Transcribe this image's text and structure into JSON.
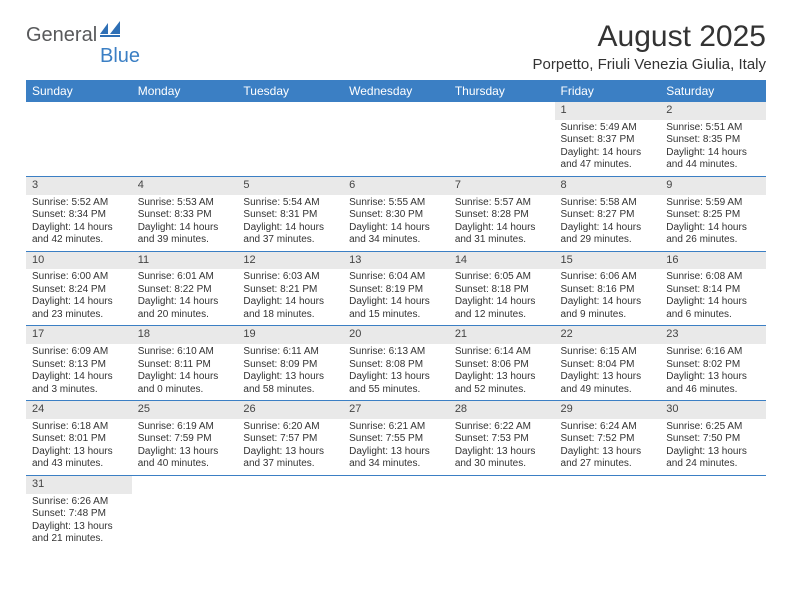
{
  "brand": {
    "part1": "General",
    "part2": "Blue"
  },
  "title": "August 2025",
  "location": "Porpetto, Friuli Venezia Giulia, Italy",
  "colors": {
    "header_bg": "#3b7fc4",
    "header_fg": "#ffffff",
    "daynum_bg": "#e9e9e9",
    "row_border": "#3b7fc4",
    "logo_gray": "#58595b",
    "logo_blue": "#3b7fc4"
  },
  "weekdays": [
    "Sunday",
    "Monday",
    "Tuesday",
    "Wednesday",
    "Thursday",
    "Friday",
    "Saturday"
  ],
  "weeks": [
    [
      null,
      null,
      null,
      null,
      null,
      {
        "n": "1",
        "sr": "Sunrise: 5:49 AM",
        "ss": "Sunset: 8:37 PM",
        "d1": "Daylight: 14 hours",
        "d2": "and 47 minutes."
      },
      {
        "n": "2",
        "sr": "Sunrise: 5:51 AM",
        "ss": "Sunset: 8:35 PM",
        "d1": "Daylight: 14 hours",
        "d2": "and 44 minutes."
      }
    ],
    [
      {
        "n": "3",
        "sr": "Sunrise: 5:52 AM",
        "ss": "Sunset: 8:34 PM",
        "d1": "Daylight: 14 hours",
        "d2": "and 42 minutes."
      },
      {
        "n": "4",
        "sr": "Sunrise: 5:53 AM",
        "ss": "Sunset: 8:33 PM",
        "d1": "Daylight: 14 hours",
        "d2": "and 39 minutes."
      },
      {
        "n": "5",
        "sr": "Sunrise: 5:54 AM",
        "ss": "Sunset: 8:31 PM",
        "d1": "Daylight: 14 hours",
        "d2": "and 37 minutes."
      },
      {
        "n": "6",
        "sr": "Sunrise: 5:55 AM",
        "ss": "Sunset: 8:30 PM",
        "d1": "Daylight: 14 hours",
        "d2": "and 34 minutes."
      },
      {
        "n": "7",
        "sr": "Sunrise: 5:57 AM",
        "ss": "Sunset: 8:28 PM",
        "d1": "Daylight: 14 hours",
        "d2": "and 31 minutes."
      },
      {
        "n": "8",
        "sr": "Sunrise: 5:58 AM",
        "ss": "Sunset: 8:27 PM",
        "d1": "Daylight: 14 hours",
        "d2": "and 29 minutes."
      },
      {
        "n": "9",
        "sr": "Sunrise: 5:59 AM",
        "ss": "Sunset: 8:25 PM",
        "d1": "Daylight: 14 hours",
        "d2": "and 26 minutes."
      }
    ],
    [
      {
        "n": "10",
        "sr": "Sunrise: 6:00 AM",
        "ss": "Sunset: 8:24 PM",
        "d1": "Daylight: 14 hours",
        "d2": "and 23 minutes."
      },
      {
        "n": "11",
        "sr": "Sunrise: 6:01 AM",
        "ss": "Sunset: 8:22 PM",
        "d1": "Daylight: 14 hours",
        "d2": "and 20 minutes."
      },
      {
        "n": "12",
        "sr": "Sunrise: 6:03 AM",
        "ss": "Sunset: 8:21 PM",
        "d1": "Daylight: 14 hours",
        "d2": "and 18 minutes."
      },
      {
        "n": "13",
        "sr": "Sunrise: 6:04 AM",
        "ss": "Sunset: 8:19 PM",
        "d1": "Daylight: 14 hours",
        "d2": "and 15 minutes."
      },
      {
        "n": "14",
        "sr": "Sunrise: 6:05 AM",
        "ss": "Sunset: 8:18 PM",
        "d1": "Daylight: 14 hours",
        "d2": "and 12 minutes."
      },
      {
        "n": "15",
        "sr": "Sunrise: 6:06 AM",
        "ss": "Sunset: 8:16 PM",
        "d1": "Daylight: 14 hours",
        "d2": "and 9 minutes."
      },
      {
        "n": "16",
        "sr": "Sunrise: 6:08 AM",
        "ss": "Sunset: 8:14 PM",
        "d1": "Daylight: 14 hours",
        "d2": "and 6 minutes."
      }
    ],
    [
      {
        "n": "17",
        "sr": "Sunrise: 6:09 AM",
        "ss": "Sunset: 8:13 PM",
        "d1": "Daylight: 14 hours",
        "d2": "and 3 minutes."
      },
      {
        "n": "18",
        "sr": "Sunrise: 6:10 AM",
        "ss": "Sunset: 8:11 PM",
        "d1": "Daylight: 14 hours",
        "d2": "and 0 minutes."
      },
      {
        "n": "19",
        "sr": "Sunrise: 6:11 AM",
        "ss": "Sunset: 8:09 PM",
        "d1": "Daylight: 13 hours",
        "d2": "and 58 minutes."
      },
      {
        "n": "20",
        "sr": "Sunrise: 6:13 AM",
        "ss": "Sunset: 8:08 PM",
        "d1": "Daylight: 13 hours",
        "d2": "and 55 minutes."
      },
      {
        "n": "21",
        "sr": "Sunrise: 6:14 AM",
        "ss": "Sunset: 8:06 PM",
        "d1": "Daylight: 13 hours",
        "d2": "and 52 minutes."
      },
      {
        "n": "22",
        "sr": "Sunrise: 6:15 AM",
        "ss": "Sunset: 8:04 PM",
        "d1": "Daylight: 13 hours",
        "d2": "and 49 minutes."
      },
      {
        "n": "23",
        "sr": "Sunrise: 6:16 AM",
        "ss": "Sunset: 8:02 PM",
        "d1": "Daylight: 13 hours",
        "d2": "and 46 minutes."
      }
    ],
    [
      {
        "n": "24",
        "sr": "Sunrise: 6:18 AM",
        "ss": "Sunset: 8:01 PM",
        "d1": "Daylight: 13 hours",
        "d2": "and 43 minutes."
      },
      {
        "n": "25",
        "sr": "Sunrise: 6:19 AM",
        "ss": "Sunset: 7:59 PM",
        "d1": "Daylight: 13 hours",
        "d2": "and 40 minutes."
      },
      {
        "n": "26",
        "sr": "Sunrise: 6:20 AM",
        "ss": "Sunset: 7:57 PM",
        "d1": "Daylight: 13 hours",
        "d2": "and 37 minutes."
      },
      {
        "n": "27",
        "sr": "Sunrise: 6:21 AM",
        "ss": "Sunset: 7:55 PM",
        "d1": "Daylight: 13 hours",
        "d2": "and 34 minutes."
      },
      {
        "n": "28",
        "sr": "Sunrise: 6:22 AM",
        "ss": "Sunset: 7:53 PM",
        "d1": "Daylight: 13 hours",
        "d2": "and 30 minutes."
      },
      {
        "n": "29",
        "sr": "Sunrise: 6:24 AM",
        "ss": "Sunset: 7:52 PM",
        "d1": "Daylight: 13 hours",
        "d2": "and 27 minutes."
      },
      {
        "n": "30",
        "sr": "Sunrise: 6:25 AM",
        "ss": "Sunset: 7:50 PM",
        "d1": "Daylight: 13 hours",
        "d2": "and 24 minutes."
      }
    ],
    [
      {
        "n": "31",
        "sr": "Sunrise: 6:26 AM",
        "ss": "Sunset: 7:48 PM",
        "d1": "Daylight: 13 hours",
        "d2": "and 21 minutes."
      },
      null,
      null,
      null,
      null,
      null,
      null
    ]
  ]
}
